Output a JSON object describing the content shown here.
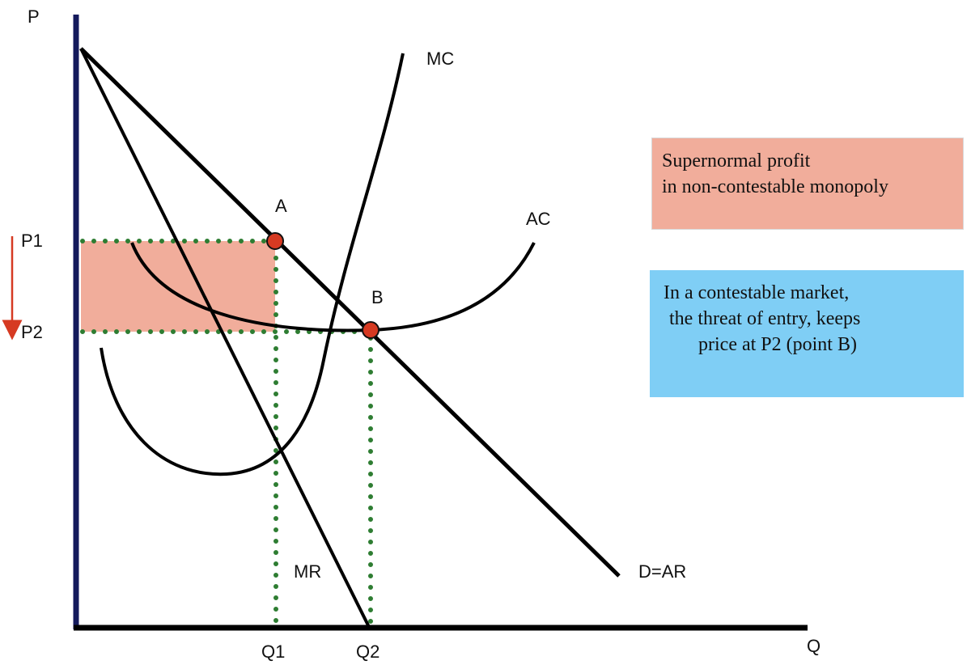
{
  "axes": {
    "y_label": "P",
    "x_label": "Q",
    "price_labels": [
      "P1",
      "P2"
    ],
    "quantity_labels": [
      "Q1",
      "Q2"
    ]
  },
  "curves": {
    "mc": "MC",
    "ac": "AC",
    "mr": "MR",
    "demand": "D=AR"
  },
  "points": {
    "a": "A",
    "b": "B"
  },
  "notes": {
    "profit_line1": "Supernormal profit",
    "profit_line2": "in non-contestable monopoly",
    "contest_line1": "In a contestable market,",
    "contest_line2": " the threat of entry, keeps",
    "contest_line3": "price at P2 (point B)"
  },
  "colors": {
    "axis": "#141a5c",
    "profit_area": "#f1ad9b",
    "contest_box": "#7fcef5",
    "dotted_guides": "#2e7d32",
    "points": "#d63a22",
    "arrow": "#d63a22"
  }
}
